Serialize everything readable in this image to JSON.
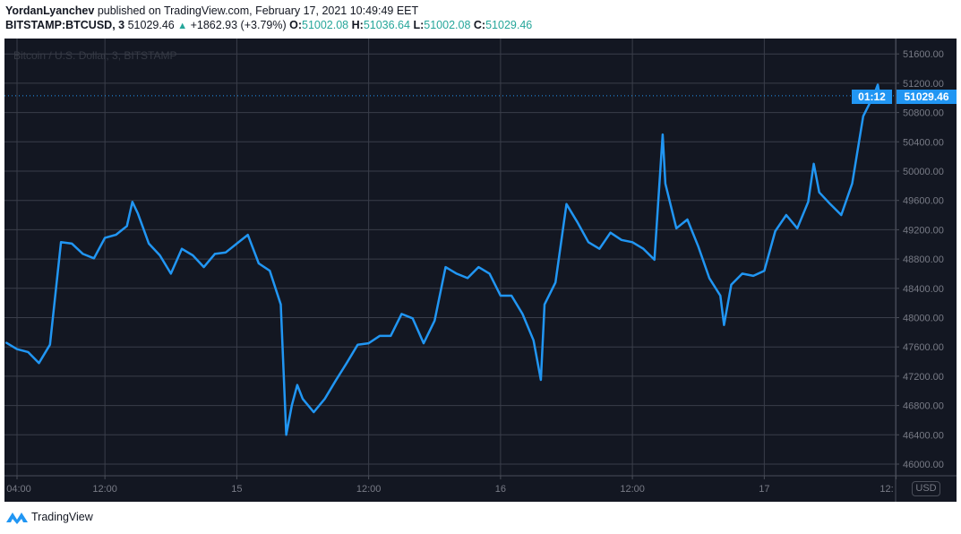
{
  "header": {
    "author": "YordanLyanchev",
    "published_text": "published on TradingView.com, February 17, 2021 10:49:49 EET",
    "symbol": "BITSTAMP:BTCUSD, 3",
    "last": "51029.46",
    "change_icon": "triangle-up-icon",
    "change": "+1862.93 (+3.79%)",
    "o_label": "O:",
    "o": "51002.08",
    "h_label": "H:",
    "h": "51036.64",
    "l_label": "L:",
    "l": "51002.08",
    "c_label": "C:",
    "c": "51029.46"
  },
  "watermark": "Bitcoin / U.S. Dollar, 3, BITSTAMP",
  "currency_button": "USD",
  "last_price_label": "51029.46",
  "countdown_label": "01:12",
  "footer": {
    "logo_icon": "tradingview-logo-icon",
    "brand": "TradingView"
  },
  "colors": {
    "background": "#131722",
    "line": "#2196f3",
    "grid": "#363a45",
    "axis_text": "#b2b5be",
    "up": "#26a69a"
  },
  "chart_data": {
    "type": "line",
    "title": "",
    "ylim": [
      45850,
      51800
    ],
    "y_ticks": [
      46000,
      46400,
      46800,
      47200,
      47600,
      48000,
      48400,
      48800,
      49200,
      49600,
      50000,
      50400,
      50800,
      51200,
      51600
    ],
    "x_ticks": [
      {
        "time": "2021-02-14 04:00",
        "label": "04:00"
      },
      {
        "time": "2021-02-14 12:00",
        "label": "12:00"
      },
      {
        "time": "2021-02-15 00:00",
        "label": "15"
      },
      {
        "time": "2021-02-15 12:00",
        "label": "12:00"
      },
      {
        "time": "2021-02-16 00:00",
        "label": "16"
      },
      {
        "time": "2021-02-16 12:00",
        "label": "12:00"
      },
      {
        "time": "2021-02-17 00:00",
        "label": "17"
      },
      {
        "time": "2021-02-17 12:00",
        "label": "12:"
      }
    ],
    "grid": true,
    "last_price": 51029.46,
    "series": [
      {
        "points": [
          [
            "2021-02-14 03:00",
            47660
          ],
          [
            "2021-02-14 04:00",
            47570
          ],
          [
            "2021-02-14 05:00",
            47530
          ],
          [
            "2021-02-14 06:00",
            47380
          ],
          [
            "2021-02-14 07:00",
            47630
          ],
          [
            "2021-02-14 08:00",
            49030
          ],
          [
            "2021-02-14 09:00",
            49010
          ],
          [
            "2021-02-14 10:00",
            48870
          ],
          [
            "2021-02-14 11:00",
            48810
          ],
          [
            "2021-02-14 12:00",
            49090
          ],
          [
            "2021-02-14 13:00",
            49130
          ],
          [
            "2021-02-14 14:00",
            49250
          ],
          [
            "2021-02-14 14:30",
            49580
          ],
          [
            "2021-02-14 15:00",
            49420
          ],
          [
            "2021-02-14 16:00",
            49010
          ],
          [
            "2021-02-14 17:00",
            48850
          ],
          [
            "2021-02-14 18:00",
            48600
          ],
          [
            "2021-02-14 19:00",
            48940
          ],
          [
            "2021-02-14 20:00",
            48850
          ],
          [
            "2021-02-14 21:00",
            48690
          ],
          [
            "2021-02-14 22:00",
            48870
          ],
          [
            "2021-02-14 23:00",
            48890
          ],
          [
            "2021-02-15 00:00",
            49010
          ],
          [
            "2021-02-15 01:00",
            49130
          ],
          [
            "2021-02-15 02:00",
            48740
          ],
          [
            "2021-02-15 03:00",
            48640
          ],
          [
            "2021-02-15 04:00",
            48180
          ],
          [
            "2021-02-15 04:30",
            46400
          ],
          [
            "2021-02-15 05:00",
            46800
          ],
          [
            "2021-02-15 05:30",
            47080
          ],
          [
            "2021-02-15 06:00",
            46890
          ],
          [
            "2021-02-15 07:00",
            46710
          ],
          [
            "2021-02-15 08:00",
            46890
          ],
          [
            "2021-02-15 09:00",
            47140
          ],
          [
            "2021-02-15 10:00",
            47380
          ],
          [
            "2021-02-15 11:00",
            47630
          ],
          [
            "2021-02-15 12:00",
            47650
          ],
          [
            "2021-02-15 13:00",
            47750
          ],
          [
            "2021-02-15 14:00",
            47750
          ],
          [
            "2021-02-15 15:00",
            48050
          ],
          [
            "2021-02-15 16:00",
            47990
          ],
          [
            "2021-02-15 17:00",
            47650
          ],
          [
            "2021-02-15 18:00",
            47960
          ],
          [
            "2021-02-15 19:00",
            48690
          ],
          [
            "2021-02-15 20:00",
            48600
          ],
          [
            "2021-02-15 21:00",
            48540
          ],
          [
            "2021-02-15 22:00",
            48690
          ],
          [
            "2021-02-15 23:00",
            48600
          ],
          [
            "2021-02-16 00:00",
            48300
          ],
          [
            "2021-02-16 01:00",
            48300
          ],
          [
            "2021-02-16 02:00",
            48050
          ],
          [
            "2021-02-16 03:00",
            47690
          ],
          [
            "2021-02-16 03:40",
            47150
          ],
          [
            "2021-02-16 04:00",
            48180
          ],
          [
            "2021-02-16 05:00",
            48480
          ],
          [
            "2021-02-16 06:00",
            49550
          ],
          [
            "2021-02-16 07:00",
            49300
          ],
          [
            "2021-02-16 08:00",
            49030
          ],
          [
            "2021-02-16 09:00",
            48940
          ],
          [
            "2021-02-16 10:00",
            49160
          ],
          [
            "2021-02-16 11:00",
            49060
          ],
          [
            "2021-02-16 12:00",
            49030
          ],
          [
            "2021-02-16 13:00",
            48940
          ],
          [
            "2021-02-16 14:00",
            48790
          ],
          [
            "2021-02-16 14:45",
            50500
          ],
          [
            "2021-02-16 15:00",
            49830
          ],
          [
            "2021-02-16 16:00",
            49220
          ],
          [
            "2021-02-16 17:00",
            49340
          ],
          [
            "2021-02-16 18:00",
            48970
          ],
          [
            "2021-02-16 19:00",
            48540
          ],
          [
            "2021-02-16 20:00",
            48300
          ],
          [
            "2021-02-16 20:20",
            47900
          ],
          [
            "2021-02-16 21:00",
            48450
          ],
          [
            "2021-02-16 22:00",
            48600
          ],
          [
            "2021-02-16 23:00",
            48570
          ],
          [
            "2021-02-17 00:00",
            48640
          ],
          [
            "2021-02-17 01:00",
            49180
          ],
          [
            "2021-02-17 02:00",
            49400
          ],
          [
            "2021-02-17 03:00",
            49220
          ],
          [
            "2021-02-17 04:00",
            49580
          ],
          [
            "2021-02-17 04:30",
            50100
          ],
          [
            "2021-02-17 05:00",
            49710
          ],
          [
            "2021-02-17 06:00",
            49550
          ],
          [
            "2021-02-17 07:00",
            49400
          ],
          [
            "2021-02-17 08:00",
            49830
          ],
          [
            "2021-02-17 09:00",
            50750
          ],
          [
            "2021-02-17 10:00",
            51050
          ],
          [
            "2021-02-17 10:20",
            51180
          ],
          [
            "2021-02-17 10:35",
            50950
          ],
          [
            "2021-02-17 10:49",
            51029.46
          ]
        ]
      }
    ]
  }
}
